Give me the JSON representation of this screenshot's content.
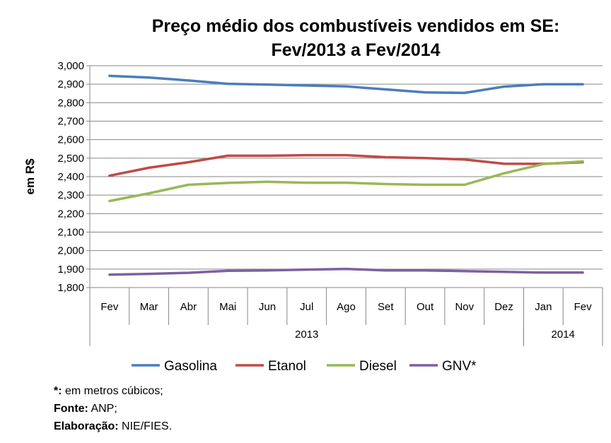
{
  "chart_data": {
    "type": "line",
    "title_line1": "Preço médio dos combustíveis vendidos em SE:",
    "title_line2": "Fev/2013 a Fev/2014",
    "ylabel": "em R$",
    "ylim": [
      1800,
      3000
    ],
    "ytick_step": 100,
    "ytick_labels": [
      "1,800",
      "1,900",
      "2,000",
      "2,100",
      "2,200",
      "2,300",
      "2,400",
      "2,500",
      "2,600",
      "2,700",
      "2,800",
      "2,900",
      "3,000"
    ],
    "categories": [
      "Fev",
      "Mar",
      "Abr",
      "Mai",
      "Jun",
      "Jul",
      "Ago",
      "Set",
      "Out",
      "Nov",
      "Dez",
      "Jan",
      "Fev"
    ],
    "year_groups": [
      {
        "label": "2013",
        "start": 0,
        "end": 10
      },
      {
        "label": "2014",
        "start": 11,
        "end": 12
      }
    ],
    "series": [
      {
        "name": "Gasolina",
        "color": "#4a7ebb",
        "values": [
          2945,
          2936,
          2920,
          2902,
          2898,
          2893,
          2888,
          2872,
          2856,
          2853,
          2887,
          2900,
          2900
        ]
      },
      {
        "name": "Etanol",
        "color": "#be4b48",
        "values": [
          2405,
          2448,
          2478,
          2513,
          2513,
          2516,
          2516,
          2505,
          2500,
          2493,
          2470,
          2469,
          2478
        ]
      },
      {
        "name": "Diesel",
        "color": "#98b954",
        "values": [
          2268,
          2310,
          2356,
          2366,
          2372,
          2367,
          2367,
          2360,
          2356,
          2356,
          2418,
          2468,
          2482
        ]
      },
      {
        "name": "GNV*",
        "color": "#7d60a0",
        "values": [
          1870,
          1874,
          1880,
          1891,
          1893,
          1897,
          1901,
          1893,
          1893,
          1889,
          1885,
          1881,
          1881
        ]
      }
    ]
  },
  "notes": {
    "note1_key": "*:",
    "note1_val": " em metros cúbicos;",
    "note2_key": "Fonte:",
    "note2_val": " ANP;",
    "note3_key": "Elaboração:",
    "note3_val": "  NIE/FIES."
  }
}
